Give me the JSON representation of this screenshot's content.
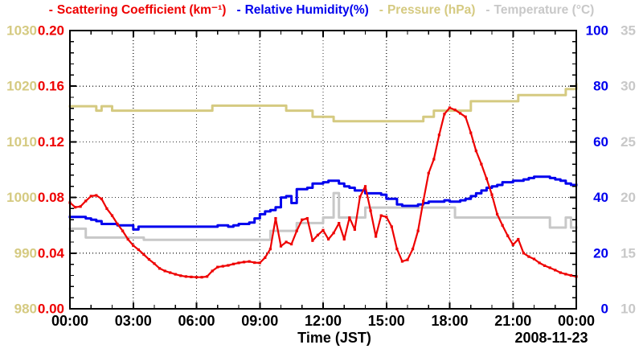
{
  "legend": {
    "items": [
      {
        "dash": "-",
        "label": "Scattering Coefficient (km⁻¹)",
        "color": "#ee0000"
      },
      {
        "dash": "-",
        "label": "Relative Humidity(%)",
        "color": "#0000ee"
      },
      {
        "dash": "-",
        "label": "Pressure (hPa)",
        "color": "#d5ca81"
      },
      {
        "dash": "-",
        "label": "Temperature (°C)",
        "color": "#c8c8c8"
      }
    ]
  },
  "chart_data": {
    "type": "line",
    "xlabel": "Time (JST)",
    "date_label": "2008-11-23",
    "x_ticks": [
      "00:00",
      "03:00",
      "06:00",
      "09:00",
      "12:00",
      "15:00",
      "18:00",
      "21:00",
      "00:00"
    ],
    "x_range_hours": [
      0,
      24
    ],
    "x_major_step_hours": 3,
    "x_minor_step_hours": 1,
    "grid": "dotted lines at every major tick, both directions",
    "legend_position": "top-center",
    "axes": {
      "scattering": {
        "label": "Scattering Coefficient (km⁻¹)",
        "side": "left-inner",
        "color": "#ee0000",
        "range": [
          0,
          0.2
        ],
        "ticks": [
          "0.00",
          "0.04",
          "0.08",
          "0.12",
          "0.16",
          "0.20"
        ]
      },
      "humidity": {
        "label": "Relative Humidity(%)",
        "side": "right-inner",
        "color": "#0000ee",
        "range": [
          0,
          100
        ],
        "ticks": [
          "0",
          "20",
          "40",
          "60",
          "80",
          "100"
        ]
      },
      "pressure": {
        "label": "Pressure (hPa)",
        "side": "left-outer",
        "color": "#d5ca81",
        "range": [
          980,
          1030
        ],
        "ticks": [
          "980",
          "990",
          "1000",
          "1010",
          "1020",
          "1030"
        ]
      },
      "temperature": {
        "label": "Temperature (°C)",
        "side": "right-outer",
        "color": "#c8c8c8",
        "range": [
          10,
          35
        ],
        "ticks": [
          "10",
          "15",
          "20",
          "25",
          "30",
          "35"
        ]
      }
    },
    "time_hours": [
      0,
      0.25,
      0.5,
      0.75,
      1,
      1.25,
      1.5,
      1.75,
      2,
      2.25,
      2.5,
      2.75,
      3,
      3.25,
      3.5,
      3.75,
      4,
      4.25,
      4.5,
      4.75,
      5,
      5.25,
      5.5,
      5.75,
      6,
      6.25,
      6.5,
      6.75,
      7,
      7.25,
      7.5,
      7.75,
      8,
      8.25,
      8.5,
      8.75,
      9,
      9.25,
      9.5,
      9.75,
      10,
      10.25,
      10.5,
      10.75,
      11,
      11.25,
      11.5,
      11.75,
      12,
      12.25,
      12.5,
      12.75,
      13,
      13.25,
      13.5,
      13.75,
      14,
      14.25,
      14.5,
      14.75,
      15,
      15.25,
      15.5,
      15.75,
      16,
      16.25,
      16.5,
      16.75,
      17,
      17.25,
      17.5,
      17.75,
      18,
      18.25,
      18.5,
      18.75,
      19,
      19.25,
      19.5,
      19.75,
      20,
      20.25,
      20.5,
      20.75,
      21,
      21.25,
      21.5,
      21.75,
      22,
      22.25,
      22.5,
      22.75,
      23,
      23.25,
      23.5,
      23.75,
      24
    ],
    "draw_order": [
      "temperature",
      "pressure",
      "humidity",
      "scattering"
    ],
    "series": [
      {
        "name": "scattering",
        "axis": "scattering",
        "color": "#ee0000",
        "width": 2.2,
        "marker": true,
        "step": false,
        "values": [
          0.0763,
          0.073,
          0.0735,
          0.0775,
          0.081,
          0.0815,
          0.079,
          0.072,
          0.067,
          0.061,
          0.056,
          0.05,
          0.0455,
          0.0425,
          0.039,
          0.0355,
          0.0325,
          0.029,
          0.0272,
          0.026,
          0.0248,
          0.0238,
          0.0232,
          0.0229,
          0.0227,
          0.0227,
          0.0232,
          0.0272,
          0.03,
          0.0306,
          0.0312,
          0.0322,
          0.033,
          0.0336,
          0.034,
          0.0332,
          0.033,
          0.0368,
          0.043,
          0.065,
          0.045,
          0.048,
          0.0465,
          0.056,
          0.064,
          0.065,
          0.049,
          0.053,
          0.0565,
          0.05,
          0.0545,
          0.0615,
          0.05,
          0.0655,
          0.057,
          0.0805,
          0.088,
          0.0705,
          0.052,
          0.067,
          0.066,
          0.059,
          0.043,
          0.0341,
          0.0352,
          0.043,
          0.056,
          0.0775,
          0.0975,
          0.1075,
          0.125,
          0.14,
          0.1445,
          0.143,
          0.1405,
          0.138,
          0.1265,
          0.1135,
          0.104,
          0.0935,
          0.082,
          0.068,
          0.06,
          0.0525,
          0.046,
          0.05,
          0.04,
          0.0375,
          0.0358,
          0.033,
          0.031,
          0.0295,
          0.0278,
          0.026,
          0.0249,
          0.024,
          0.0232
        ]
      },
      {
        "name": "humidity",
        "axis": "humidity",
        "color": "#0000ee",
        "width": 3,
        "marker": false,
        "step": true,
        "values": [
          33,
          33,
          33,
          32.5,
          32,
          31.5,
          30.5,
          30.5,
          30.5,
          30,
          30,
          30,
          28.5,
          29.5,
          29.5,
          29.5,
          29.5,
          29.5,
          29.5,
          29.5,
          29.5,
          29.5,
          29.5,
          29.5,
          29.5,
          29.5,
          29.5,
          29.5,
          30,
          30,
          29.5,
          30,
          30.5,
          30.5,
          31,
          32.5,
          34,
          35,
          35.5,
          36.5,
          40,
          40.5,
          38,
          43,
          43,
          43.5,
          45,
          45,
          45.5,
          46,
          46,
          45,
          44,
          43.5,
          42.5,
          42.5,
          41.5,
          41.5,
          41.5,
          41,
          39.5,
          39.5,
          37.5,
          37,
          37,
          37,
          37.5,
          38,
          38.5,
          38.5,
          38.5,
          39,
          38.5,
          38.5,
          39,
          39.5,
          40.5,
          41.5,
          42.5,
          43.5,
          44,
          44.5,
          45.5,
          45.5,
          46,
          46,
          46.5,
          47,
          47.5,
          47.5,
          47.5,
          47,
          46.5,
          46,
          45,
          44.5,
          44.5
        ]
      },
      {
        "name": "pressure",
        "axis": "pressure",
        "color": "#d5ca81",
        "width": 3,
        "marker": false,
        "step": true,
        "values": [
          1016.4,
          1016.4,
          1016.4,
          1016.4,
          1016.4,
          1015.6,
          1016.4,
          1016.4,
          1015.6,
          1015.6,
          1015.6,
          1015.6,
          1015.6,
          1015.6,
          1015.6,
          1015.6,
          1015.6,
          1015.6,
          1015.6,
          1015.6,
          1015.6,
          1015.6,
          1015.6,
          1015.6,
          1015.6,
          1015.6,
          1015.6,
          1016.5,
          1016.5,
          1016.5,
          1016.5,
          1016.5,
          1016.5,
          1016.5,
          1016.5,
          1016.5,
          1016.5,
          1016.5,
          1016.5,
          1016.5,
          1016.5,
          1015.6,
          1015.6,
          1015.6,
          1015.6,
          1015.6,
          1014.5,
          1014.5,
          1014.5,
          1014.5,
          1013.7,
          1013.7,
          1013.7,
          1013.7,
          1013.7,
          1013.7,
          1013.7,
          1013.7,
          1013.7,
          1013.7,
          1013.7,
          1013.7,
          1013.7,
          1013.7,
          1013.7,
          1013.7,
          1013.7,
          1014.5,
          1014.5,
          1015.6,
          1015.6,
          1015.6,
          1015.6,
          1015.6,
          1015.6,
          1015.6,
          1017.3,
          1017.3,
          1017.3,
          1017.3,
          1017.3,
          1017.3,
          1017.3,
          1017.3,
          1017.3,
          1018.4,
          1018.4,
          1018.4,
          1018.4,
          1018.4,
          1018.4,
          1018.4,
          1018.4,
          1018.4,
          1019.5,
          1019.5,
          1020.3
        ]
      },
      {
        "name": "temperature",
        "axis": "temperature",
        "color": "#c8c8c8",
        "width": 3,
        "marker": false,
        "step": true,
        "values": [
          17.2,
          17.2,
          17.2,
          16.4,
          16.4,
          16.4,
          16.4,
          16.4,
          16.4,
          16.4,
          16.4,
          16.4,
          16.4,
          16.4,
          16.2,
          16.2,
          16.2,
          16.2,
          16.2,
          16.2,
          16.2,
          16.2,
          16.2,
          16.2,
          16.2,
          16.2,
          16.2,
          16.2,
          16.2,
          16.2,
          16.2,
          16.2,
          16.2,
          16.2,
          16.2,
          16.2,
          16.2,
          16.2,
          17,
          17,
          17,
          17,
          17,
          17.7,
          17.7,
          17.7,
          17.7,
          17.7,
          18.2,
          18.2,
          20.4,
          18.2,
          18.2,
          18.2,
          18.2,
          18.2,
          19.1,
          19.1,
          19.1,
          19.1,
          19.1,
          19.1,
          19.1,
          19.1,
          19.1,
          19.1,
          19.1,
          19.1,
          19.1,
          19.1,
          19.1,
          19.1,
          19.1,
          18.2,
          18.2,
          18.2,
          18.2,
          18.2,
          18.2,
          18.2,
          18.2,
          18.2,
          18.2,
          18.2,
          18.2,
          18.2,
          18.2,
          18.2,
          18.2,
          18.2,
          18.2,
          17.3,
          17.3,
          17.3,
          18.2,
          17.3,
          17.3
        ]
      }
    ]
  }
}
